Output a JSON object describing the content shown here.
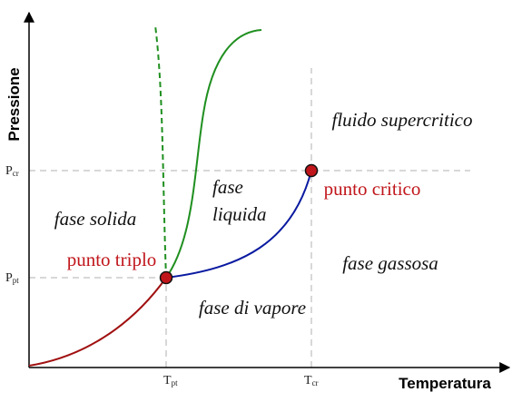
{
  "axes": {
    "y_label": "Pressione",
    "x_label": "Temperatura"
  },
  "ticks": {
    "p_cr": {
      "main": "P",
      "sub": "cr"
    },
    "p_pt": {
      "main": "P",
      "sub": "pt"
    },
    "t_pt": {
      "main": "T",
      "sub": "pt"
    },
    "t_cr": {
      "main": "T",
      "sub": "cr"
    }
  },
  "regions": {
    "supercritical": "fluido supercritico",
    "solid": "fase solida",
    "liquid": [
      "fase",
      "liquida"
    ],
    "gas": "fase gassosa",
    "vapor": "fase di vapore"
  },
  "points": {
    "critical": "punto critico",
    "triple": "punto triplo"
  }
}
